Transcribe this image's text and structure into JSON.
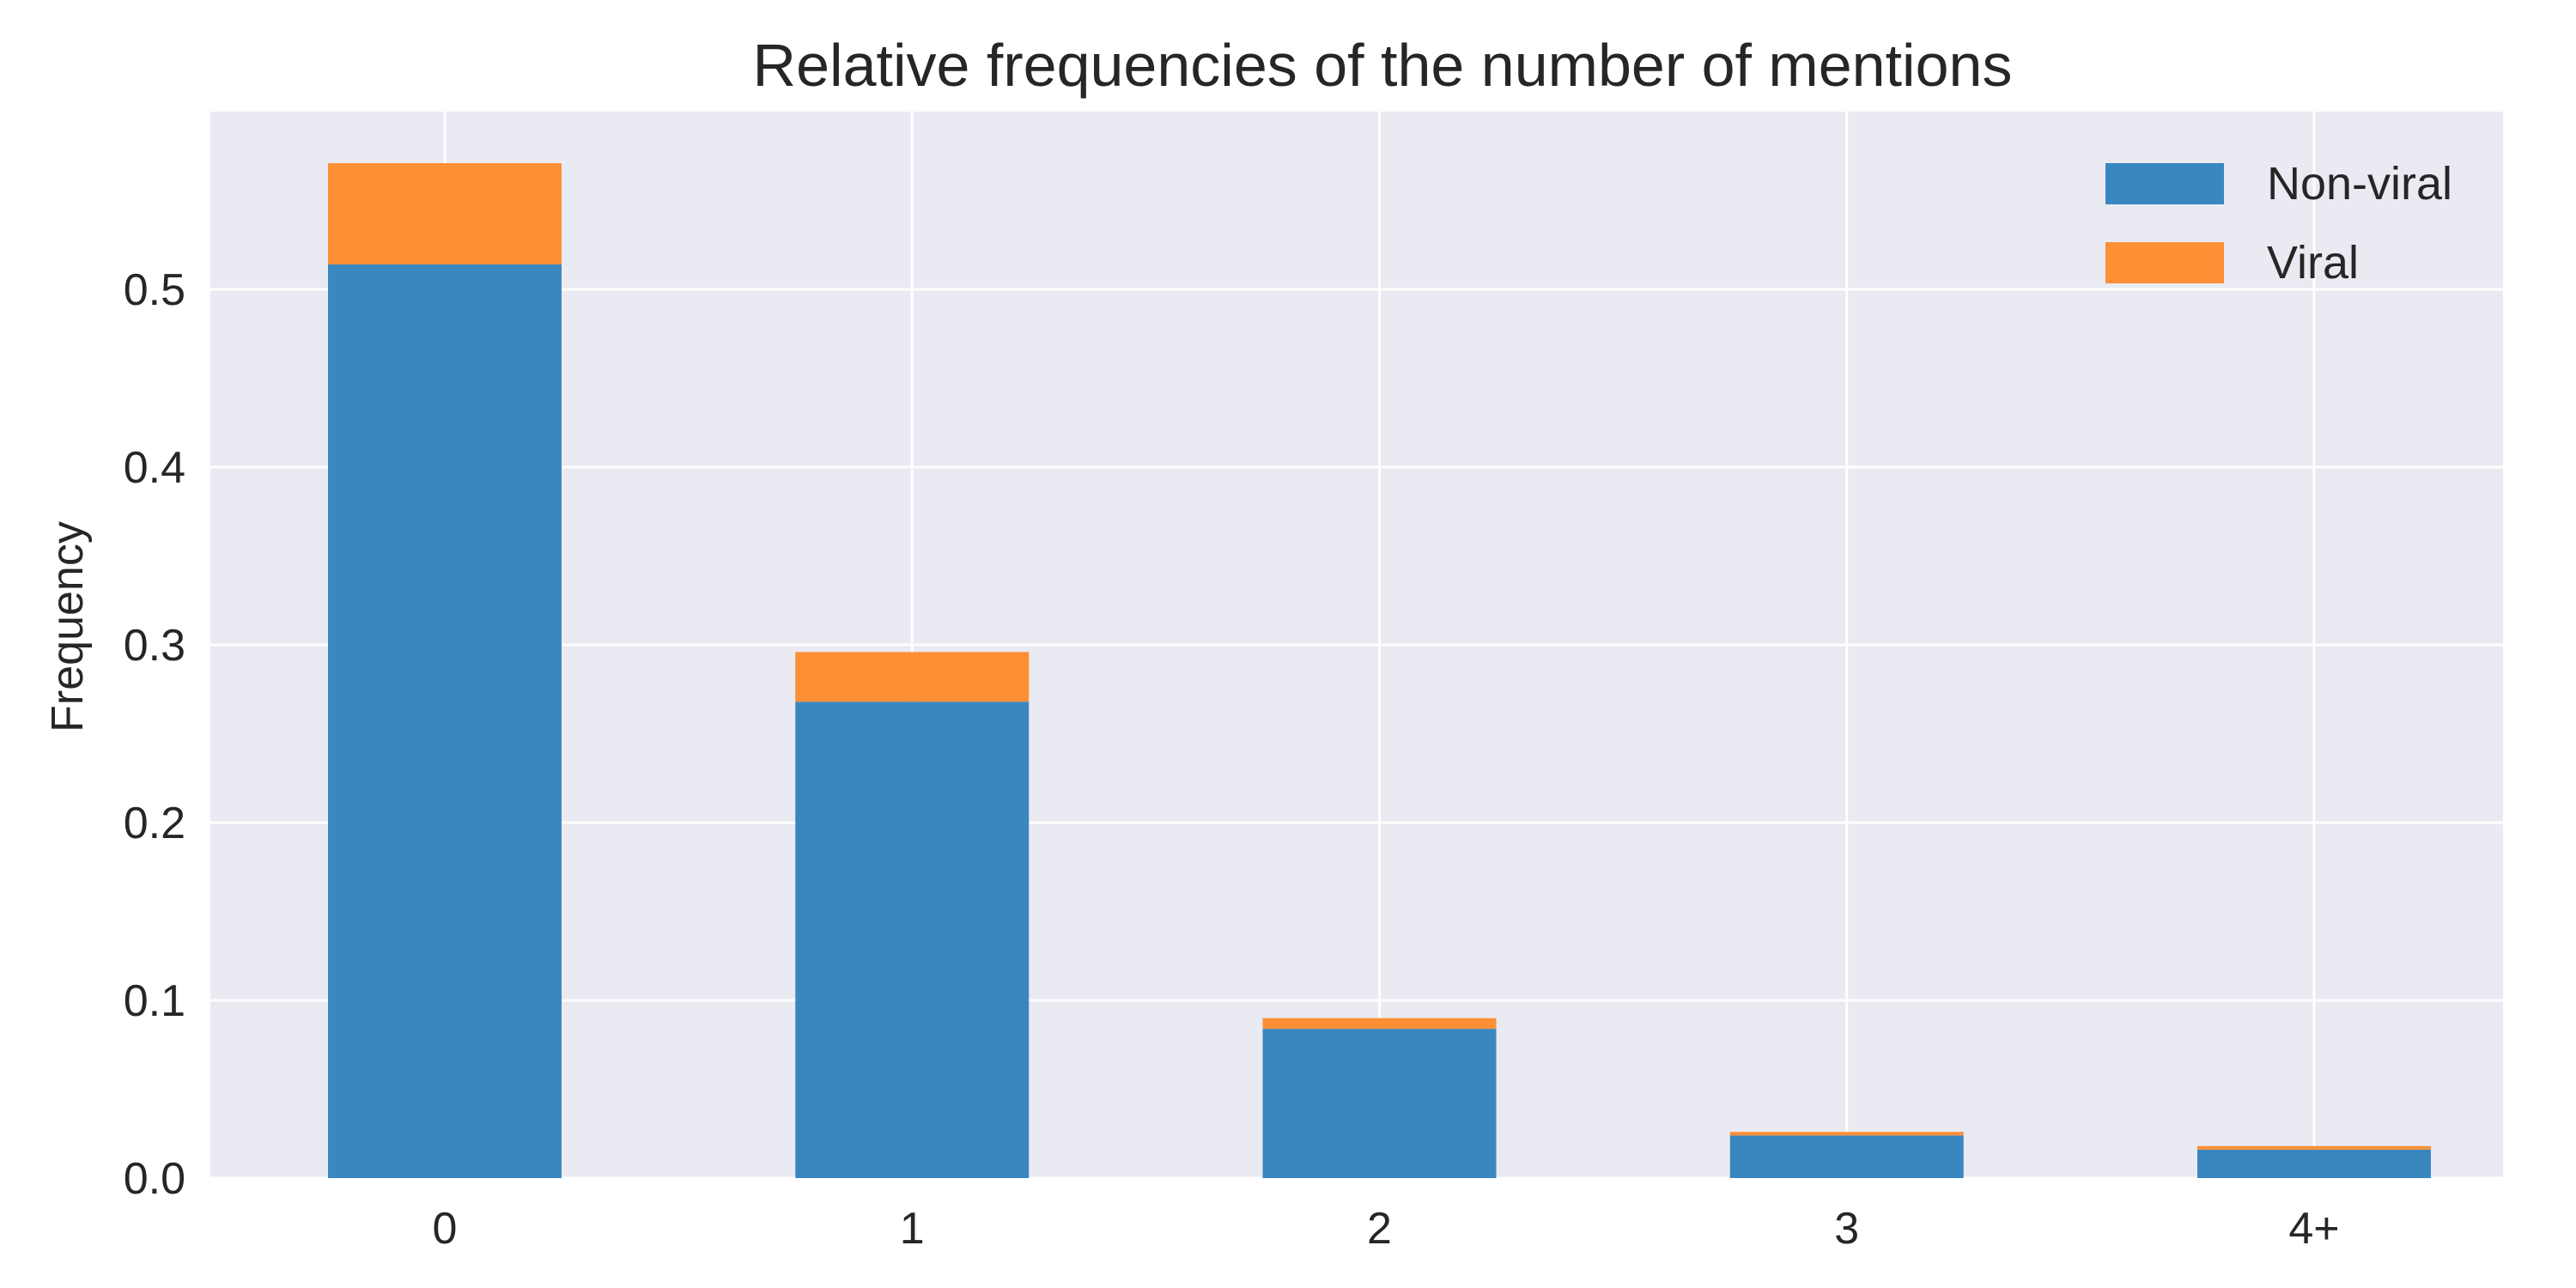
{
  "chart_data": {
    "type": "bar",
    "stacked": true,
    "title": "Relative frequencies of the number of mentions",
    "xlabel": "",
    "ylabel": "Frequency",
    "categories": [
      "0",
      "1",
      "2",
      "3",
      "4+"
    ],
    "series": [
      {
        "name": "Non-viral",
        "color": "#3a87c0",
        "values": [
          0.514,
          0.268,
          0.084,
          0.024,
          0.016
        ]
      },
      {
        "name": "Viral",
        "color": "#fd8f35",
        "values": [
          0.057,
          0.028,
          0.006,
          0.002,
          0.002
        ]
      }
    ],
    "ylim": [
      0,
      0.6
    ],
    "yticks": [
      "0.0",
      "0.1",
      "0.2",
      "0.3",
      "0.4",
      "0.5"
    ],
    "grid": true,
    "legend_position": "top-right",
    "background_color": "#eaeaf2",
    "grid_color": "#ffffff"
  }
}
